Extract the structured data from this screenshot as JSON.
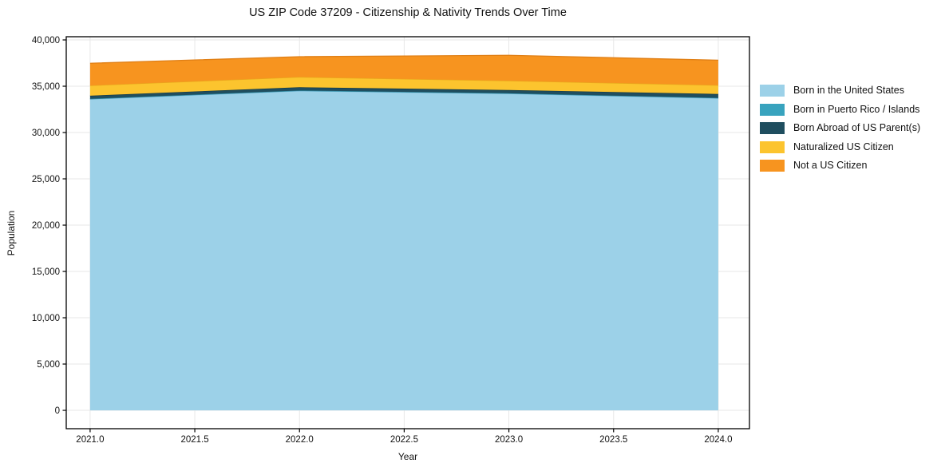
{
  "figure": {
    "background": "#ffffff"
  },
  "chart_data": {
    "type": "area",
    "stacked": true,
    "title": "US ZIP Code 37209 - Citizenship & Nativity Trends Over Time",
    "xlabel": "Year",
    "ylabel": "Population",
    "x": [
      2021,
      2022,
      2023,
      2024
    ],
    "series": [
      {
        "name": "Born in the United States",
        "color": "#9CD1E8",
        "edge": "#7ABCDC",
        "values": [
          33600,
          34500,
          34200,
          33700
        ]
      },
      {
        "name": "Born in Puerto Rico / Islands",
        "color": "#38A3BE",
        "edge": "#2E8CA3",
        "values": [
          40,
          40,
          40,
          40
        ]
      },
      {
        "name": "Born Abroad of US Parent(s)",
        "color": "#1F4E5F",
        "edge": "#163A47",
        "values": [
          340,
          350,
          350,
          420
        ]
      },
      {
        "name": "Naturalized US Citizen",
        "color": "#FCC42E",
        "edge": "#E8A91C",
        "values": [
          1100,
          1100,
          1000,
          950
        ]
      },
      {
        "name": "Not a US Citizen",
        "color": "#F7941F",
        "edge": "#E07F15",
        "values": [
          2400,
          2200,
          2750,
          2700
        ]
      }
    ],
    "xticks": {
      "values": [
        2021.0,
        2021.5,
        2022.0,
        2022.5,
        2023.0,
        2023.5,
        2024.0
      ],
      "labels": [
        "2021.0",
        "2021.5",
        "2022.0",
        "2022.5",
        "2023.0",
        "2023.5",
        "2024.0"
      ]
    },
    "yticks": {
      "values": [
        0,
        5000,
        10000,
        15000,
        20000,
        25000,
        30000,
        35000,
        40000
      ],
      "labels": [
        "0",
        "5,000",
        "10,000",
        "15,000",
        "20,000",
        "25,000",
        "30,000",
        "35,000",
        "40,000"
      ]
    },
    "xlim": [
      2020.886,
      2024.149
    ],
    "ylim": [
      -1980,
      40345
    ],
    "grid": true,
    "grid_color": "#E7E7E7",
    "spine_color": "#000000",
    "legend_position": "outside-right"
  }
}
